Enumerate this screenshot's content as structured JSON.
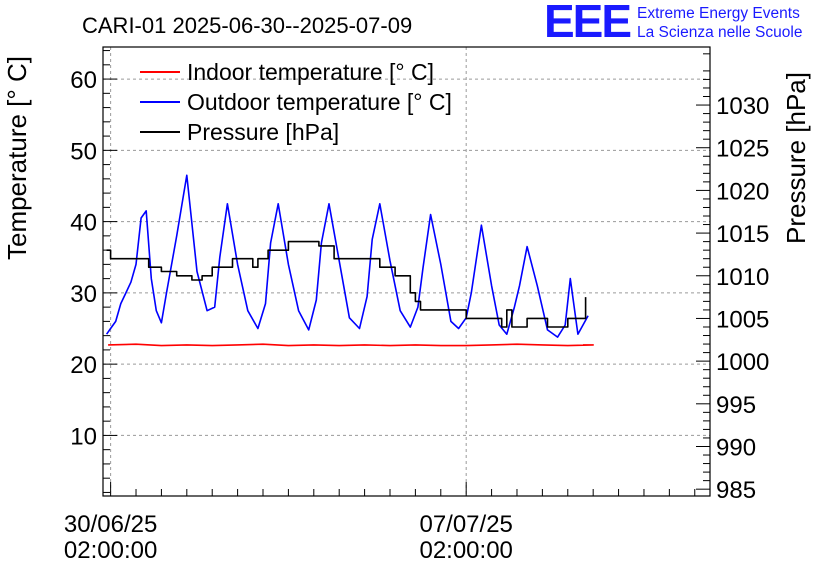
{
  "chart_data": {
    "type": "line",
    "title": "CARI-01 2025-06-30--2025-07-09",
    "x_unit": "days since 30/06/25 02:00:00",
    "xlim": [
      -0.15,
      11.8
    ],
    "xticks": [
      {
        "x": 0,
        "date": "30/06/25",
        "time": "02:00:00"
      },
      {
        "x": 7,
        "date": "07/07/25",
        "time": "02:00:00"
      }
    ],
    "ylabel": "Temperature [° C]",
    "ylim": [
      1.5,
      64.5
    ],
    "yticks": [
      10,
      20,
      30,
      40,
      50,
      60
    ],
    "y2label": "Pressure [hPa]",
    "y2lim": [
      984.2,
      1036.8
    ],
    "y2ticks": [
      985,
      990,
      995,
      1000,
      1005,
      1010,
      1015,
      1020,
      1025,
      1030
    ],
    "grid": true,
    "legend_position": "top-left",
    "series": [
      {
        "name": "Indoor temperature [° C]",
        "axis": "left",
        "color": "#ff0000",
        "x": [
          -0.05,
          0.5,
          1.0,
          1.5,
          2.0,
          2.5,
          3.0,
          3.5,
          4.0,
          4.5,
          5.0,
          5.5,
          6.0,
          6.5,
          7.0,
          7.5,
          8.0,
          8.5,
          9.0,
          9.5,
          9.3
        ],
        "y": [
          22.7,
          22.8,
          22.6,
          22.7,
          22.6,
          22.7,
          22.8,
          22.6,
          22.7,
          22.6,
          22.7,
          22.6,
          22.7,
          22.6,
          22.6,
          22.7,
          22.8,
          22.7,
          22.6,
          22.7,
          22.7
        ]
      },
      {
        "name": "Outdoor temperature [° C]",
        "axis": "left",
        "color": "#0000ff",
        "x": [
          -0.08,
          0.0,
          0.1,
          0.2,
          0.3,
          0.4,
          0.5,
          0.6,
          0.7,
          0.8,
          0.9,
          1.0,
          1.1,
          1.3,
          1.5,
          1.7,
          1.9,
          2.05,
          2.15,
          2.3,
          2.5,
          2.7,
          2.9,
          3.05,
          3.15,
          3.3,
          3.5,
          3.7,
          3.9,
          4.05,
          4.15,
          4.3,
          4.5,
          4.7,
          4.9,
          5.05,
          5.15,
          5.3,
          5.5,
          5.7,
          5.9,
          6.05,
          6.15,
          6.3,
          6.5,
          6.7,
          6.85,
          7.0,
          7.1,
          7.3,
          7.5,
          7.65,
          7.8,
          7.95,
          8.05,
          8.2,
          8.4,
          8.6,
          8.8,
          8.95,
          9.05,
          9.2,
          9.4
        ],
        "y": [
          24.2,
          25.0,
          26.0,
          28.5,
          30.0,
          31.5,
          34.0,
          40.5,
          41.5,
          32.0,
          27.5,
          25.8,
          30.0,
          38.0,
          46.5,
          33.0,
          27.5,
          28.0,
          35.0,
          42.5,
          34.0,
          27.5,
          25.0,
          28.5,
          37.0,
          42.5,
          34.0,
          27.5,
          24.8,
          29.0,
          37.0,
          42.5,
          34.5,
          26.5,
          25.0,
          29.5,
          37.5,
          42.5,
          34.5,
          27.5,
          25.2,
          28.0,
          33.5,
          41.0,
          34.0,
          26.0,
          25.0,
          26.5,
          30.0,
          39.5,
          31.0,
          25.5,
          24.2,
          28.0,
          31.0,
          36.5,
          31.0,
          24.8,
          23.8,
          25.5,
          32.0,
          24.2,
          26.8
        ]
      },
      {
        "name": "Pressure [hPa]",
        "axis": "right",
        "color": "#000000",
        "x": [
          -0.08,
          0.0,
          0.6,
          0.75,
          0.9,
          1.0,
          1.3,
          1.6,
          1.8,
          2.0,
          2.2,
          2.4,
          2.6,
          2.8,
          2.9,
          3.1,
          3.3,
          3.5,
          3.7,
          3.9,
          4.1,
          4.4,
          4.6,
          4.8,
          5.0,
          5.3,
          5.6,
          5.9,
          6.0,
          6.1,
          6.3,
          6.6,
          6.8,
          7.0,
          7.5,
          7.7,
          7.8,
          7.9,
          8.05,
          8.2,
          8.6,
          9.0,
          9.35
        ],
        "y": [
          1013.0,
          1012.0,
          1012.0,
          1011.0,
          1011.0,
          1010.5,
          1010.0,
          1009.5,
          1010.0,
          1011.0,
          1011.0,
          1012.0,
          1012.0,
          1011.0,
          1012.0,
          1013.0,
          1013.0,
          1014.0,
          1014.0,
          1014.0,
          1013.5,
          1012.0,
          1012.0,
          1012.0,
          1012.0,
          1011.0,
          1010.0,
          1008.0,
          1007.0,
          1006.0,
          1006.0,
          1006.0,
          1006.0,
          1005.0,
          1005.0,
          1004.0,
          1006.0,
          1004.0,
          1004.0,
          1005.0,
          1004.0,
          1005.0,
          1007.5
        ]
      }
    ]
  },
  "logo": {
    "mark": "EEE",
    "line1": "Extreme Energy Events",
    "line2": "La Scienza nelle Scuole"
  }
}
